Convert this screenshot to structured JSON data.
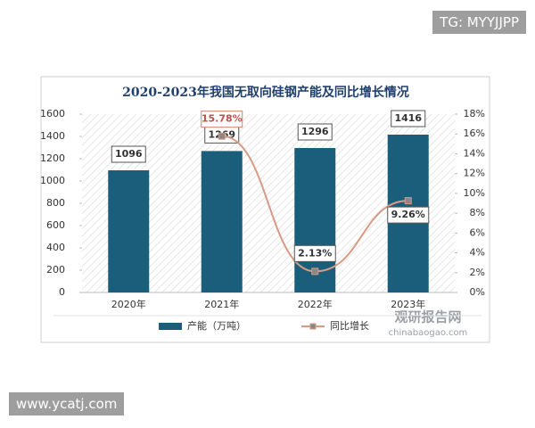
{
  "tag": "TG: MYYJJPP",
  "site": "www.ycatj.com",
  "chart_data": {
    "type": "bar",
    "title": "2020-2023年我国无取向硅钢产能及同比增长情况",
    "categories": [
      "2020年",
      "2021年",
      "2022年",
      "2023年"
    ],
    "series": [
      {
        "name": "产能（万吨）",
        "color": "#1b5e7b",
        "values": [
          1096,
          1269,
          1296,
          1416
        ]
      },
      {
        "name": "同比增长",
        "color": "#d89a84",
        "axis": "y2",
        "type": "line",
        "values": [
          null,
          15.78,
          2.13,
          9.26
        ],
        "value_labels": [
          null,
          "15.78%",
          "2.13%",
          "9.26%"
        ]
      }
    ],
    "ylim": [
      0,
      1600
    ],
    "yticks": [
      0,
      200,
      400,
      600,
      800,
      1000,
      1200,
      1400,
      1600
    ],
    "y2lim": [
      0,
      18
    ],
    "y2ticks": [
      {
        "value": 0,
        "label": "0%"
      },
      {
        "value": 2,
        "label": "2%"
      },
      {
        "value": 4,
        "label": "4%"
      },
      {
        "value": 6,
        "label": "6%"
      },
      {
        "value": 8,
        "label": "8%"
      },
      {
        "value": 10,
        "label": "10%"
      },
      {
        "value": 12,
        "label": "12%"
      },
      {
        "value": 14,
        "label": "14%"
      },
      {
        "value": 16,
        "label": "16%"
      },
      {
        "value": 18,
        "label": "18%"
      }
    ],
    "watermark": "观研报告网",
    "watermark_url": "chinabaogao.com"
  }
}
